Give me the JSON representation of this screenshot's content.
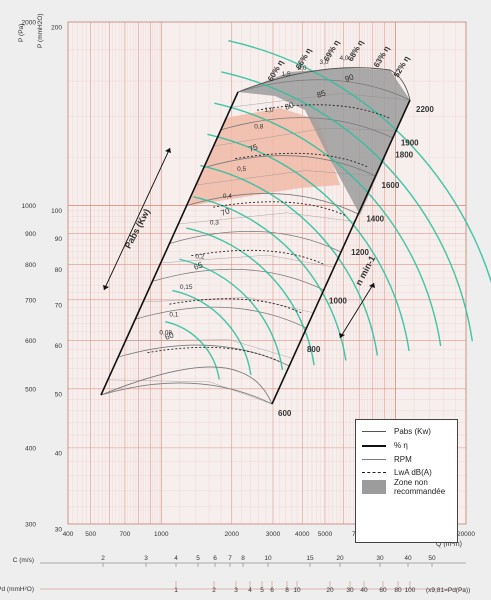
{
  "chart_data": {
    "type": "line",
    "title": "",
    "y_axis_left": {
      "label": "P (Pa)",
      "scale": "log",
      "range": [
        300,
        2000
      ],
      "ticks": [
        "300",
        "400",
        "500",
        "600",
        "700",
        "800",
        "900",
        "1000",
        "2000"
      ]
    },
    "y_axis_mm": {
      "label": "P (mmH2O)",
      "scale": "log",
      "range": [
        30,
        200
      ],
      "ticks": [
        "30",
        "40",
        "50",
        "60",
        "70",
        "80",
        "90",
        "100",
        "200"
      ]
    },
    "y_axis_inner": {
      "scale": "log",
      "ticks": [
        "10",
        "20",
        "30",
        "40",
        "50",
        "70",
        "100",
        "200"
      ]
    },
    "x_axis": {
      "label": "Q (m³/h)",
      "scale": "log",
      "range": [
        400,
        20000
      ],
      "ticks": [
        "400",
        "500",
        "700",
        "1000",
        "2000",
        "3000",
        "4000",
        "5000",
        "7000",
        "10000",
        "20000"
      ]
    },
    "pabs_label": "Pabs (Kw)",
    "pabs_values": [
      "0,08",
      "0,1",
      "0,15",
      "0,2",
      "0,3",
      "0,4",
      "0,5",
      "0,8",
      "1,0",
      "1,5",
      "2,0",
      "3,0",
      "4,0"
    ],
    "rpm_label": "n   min-1",
    "rpm_values": [
      "600",
      "800",
      "1000",
      "1200",
      "1400",
      "1600",
      "1800",
      "1900",
      "2200"
    ],
    "efficiency_values": [
      "60",
      "65",
      "70",
      "75",
      "80",
      "85",
      "90"
    ],
    "efficiency_top_labels": [
      "60% η",
      "66% η",
      "69% η",
      "68% η",
      "63% η",
      "52% η"
    ],
    "velocity_scale": {
      "label": "C (m/s)",
      "ticks": [
        "2",
        "3",
        "4",
        "5",
        "6",
        "7",
        "8",
        "10",
        "15",
        "20",
        "30",
        "40",
        "50"
      ]
    },
    "dynamic_pressure_scale": {
      "label": "Pd (mmH²O)",
      "ticks": [
        "1",
        "2",
        "3",
        "4",
        "5",
        "6",
        "8",
        "10",
        "20",
        "30",
        "40",
        "60",
        "80",
        "100"
      ],
      "note": "(x9,81=Pd(Pa))"
    },
    "colors": {
      "grid": "#e8a79b",
      "grid_major": "#d9826f",
      "rpm": "#7a7a7a",
      "efficiency": "#2fbf9f",
      "power": "#555555",
      "noise": "#222222",
      "zone": "#9c9c9c",
      "shade": "#f0b8a6"
    }
  },
  "legend": {
    "pabs": "Pabs (Kw)",
    "eta": "% η",
    "rpm": "RPM",
    "lwa": "LwA dB(A)",
    "zone": "Zone non recommandée"
  }
}
